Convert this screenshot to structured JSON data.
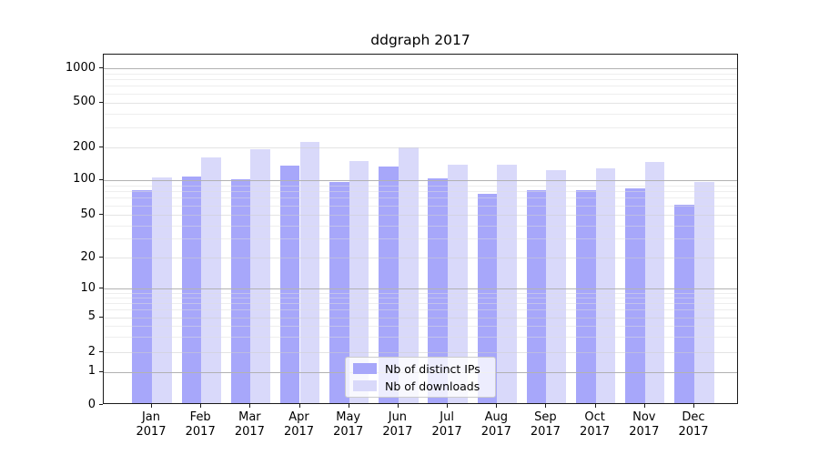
{
  "chart_data": {
    "type": "bar",
    "title": "ddgraph 2017",
    "xlabel": "",
    "ylabel": "",
    "yscale": "symlog",
    "grid": "both, drawn over bars",
    "legend_position": "lower center",
    "categories": [
      "Jan",
      "Feb",
      "Mar",
      "Apr",
      "May",
      "Jun",
      "Jul",
      "Aug",
      "Sep",
      "Oct",
      "Nov",
      "Dec"
    ],
    "year_label": "2017",
    "ytick_values": [
      1000,
      500,
      200,
      100,
      50,
      20,
      10,
      5,
      2,
      1,
      0
    ],
    "ytick_labels": [
      "1000",
      "500",
      "200",
      "100",
      "50",
      "20",
      "10",
      "5",
      "2",
      "1",
      "0"
    ],
    "ylim": [
      0,
      1300
    ],
    "series": [
      {
        "name": "Nb of distinct IPs",
        "color": "#a7a7fa",
        "values": [
          80,
          106,
          100,
          134,
          95,
          130,
          101,
          75,
          80,
          80,
          83,
          60
        ]
      },
      {
        "name": "Nb of downloads",
        "color": "#d9d9fa",
        "values": [
          103,
          160,
          190,
          218,
          146,
          198,
          135,
          136,
          120,
          126,
          144,
          95
        ]
      }
    ]
  }
}
